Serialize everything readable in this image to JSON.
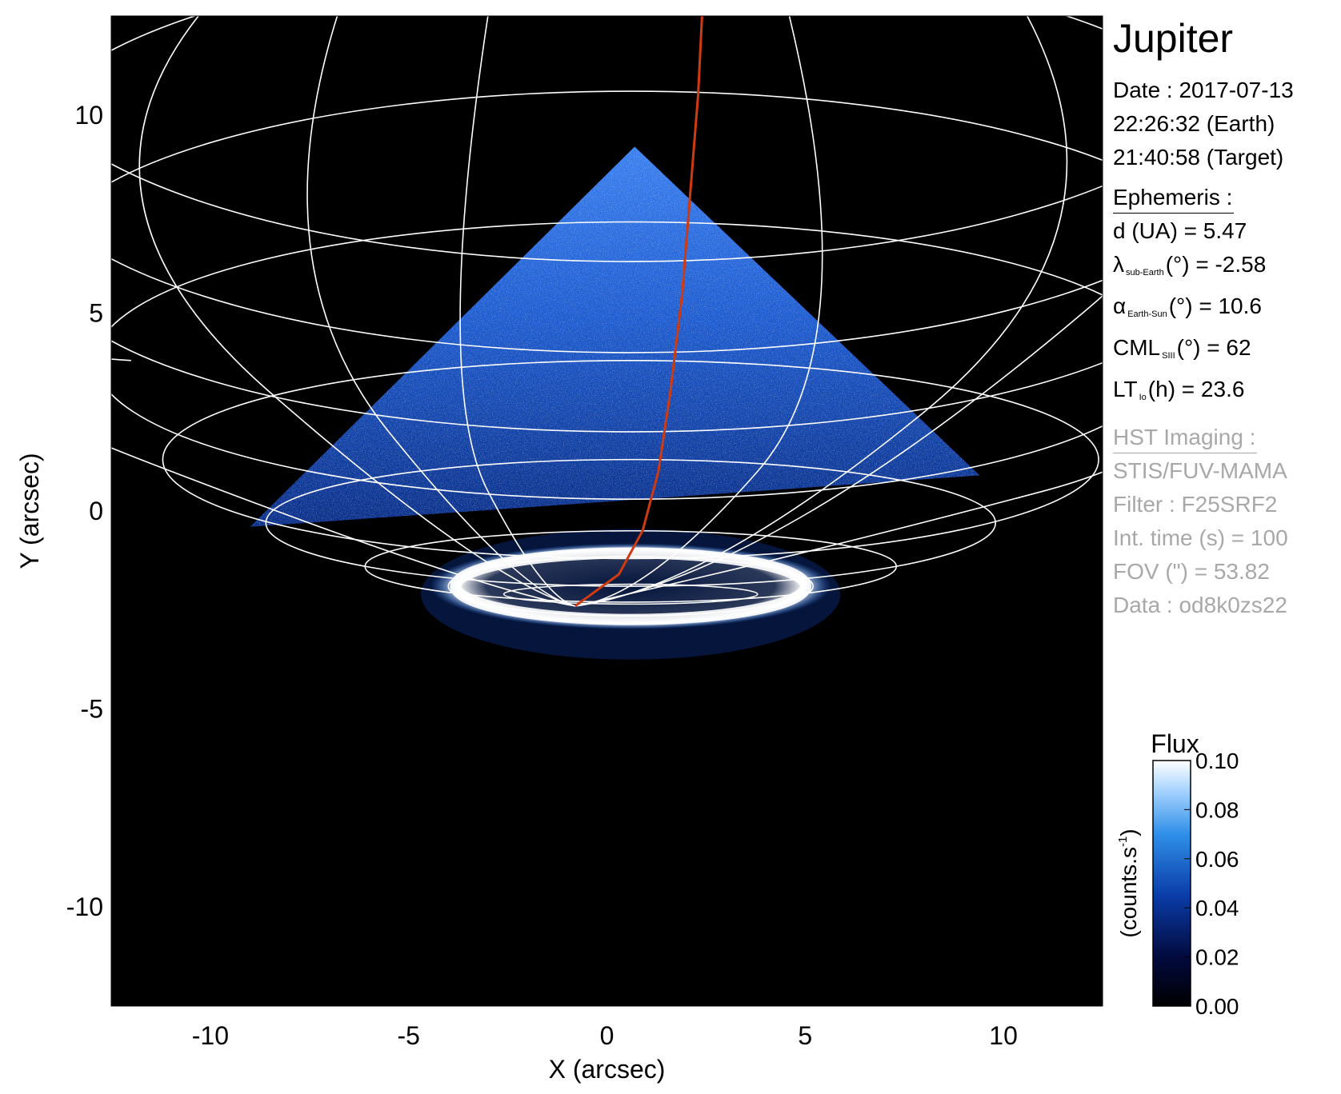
{
  "colors": {
    "background": "#000000",
    "grid": "#ffffff",
    "trajectory": "#d03a10",
    "flux_low": "#000000",
    "flux_mid": "#0a3ca8",
    "flux_high": "#ffffff"
  },
  "chart_data": {
    "type": "heatmap",
    "xlabel": "X (arcsec)",
    "ylabel": "Y (arcsec)",
    "xlim": [
      -12.5,
      12.5
    ],
    "ylim": [
      -12.5,
      12.5
    ],
    "x_ticks": [
      {
        "value": -10,
        "label": "-10"
      },
      {
        "value": -5,
        "label": "-5"
      },
      {
        "value": 0,
        "label": "0"
      },
      {
        "value": 5,
        "label": "5"
      },
      {
        "value": 10,
        "label": "10"
      }
    ],
    "y_ticks": [
      {
        "value": 10,
        "label": "10"
      },
      {
        "value": 5,
        "label": "5"
      },
      {
        "value": 0,
        "label": "0"
      },
      {
        "value": -5,
        "label": "-5"
      },
      {
        "value": -10,
        "label": "-10"
      }
    ],
    "field_of_view_triangle": [
      [
        -9.0,
        -0.4
      ],
      [
        0.7,
        9.2
      ],
      [
        9.4,
        0.9
      ]
    ],
    "auroral_oval": {
      "center": [
        0.6,
        -1.9
      ],
      "radius_x": 4.6,
      "radius_y": 0.75
    },
    "trajectory": [
      [
        -0.8,
        -2.4
      ],
      [
        0.3,
        -1.6
      ],
      [
        0.9,
        -0.5
      ],
      [
        1.3,
        1.0
      ],
      [
        1.6,
        3.0
      ],
      [
        1.9,
        5.5
      ],
      [
        2.1,
        8.0
      ],
      [
        2.3,
        10.5
      ],
      [
        2.4,
        12.5
      ]
    ],
    "colorbar": {
      "title": "Flux",
      "label_main": "(counts.s",
      "label_sup": "-1",
      "label_end": ")",
      "range": [
        0.0,
        0.1
      ],
      "ticks": [
        {
          "value": 0.1,
          "label": "0.10"
        },
        {
          "value": 0.08,
          "label": "0.08"
        },
        {
          "value": 0.06,
          "label": "0.06"
        },
        {
          "value": 0.04,
          "label": "0.04"
        },
        {
          "value": 0.02,
          "label": "0.02"
        },
        {
          "value": 0.0,
          "label": "0.00"
        }
      ]
    }
  },
  "info": {
    "title": "Jupiter",
    "date": "Date : 2017-07-13",
    "time_earth": "22:26:32 (Earth)",
    "time_target": "21:40:58 (Target)",
    "ephemeris_header": "Ephemeris :",
    "eph": {
      "d": "d (UA)    = 5.47",
      "lambda_sym": "λ",
      "lambda_sub": "sub-Earth",
      "lambda_rest": "(°) = -2.58",
      "alpha_sym": "α",
      "alpha_sub": "Earth-Sun",
      "alpha_rest": "(°) = 10.6",
      "cml_sym": "CML",
      "cml_sub": "SIII",
      "cml_rest": "(°) = 62",
      "lt_sym": "LT",
      "lt_sub": "Io",
      "lt_rest": "(h) = 23.6"
    },
    "hst_header": "HST Imaging :",
    "instrument": "STIS/FUV-MAMA",
    "filter": "Filter : F25SRF2",
    "int_time": "Int. time (s) = 100",
    "fov": "FOV (\") = 53.82",
    "data": "Data : od8k0zs22"
  }
}
